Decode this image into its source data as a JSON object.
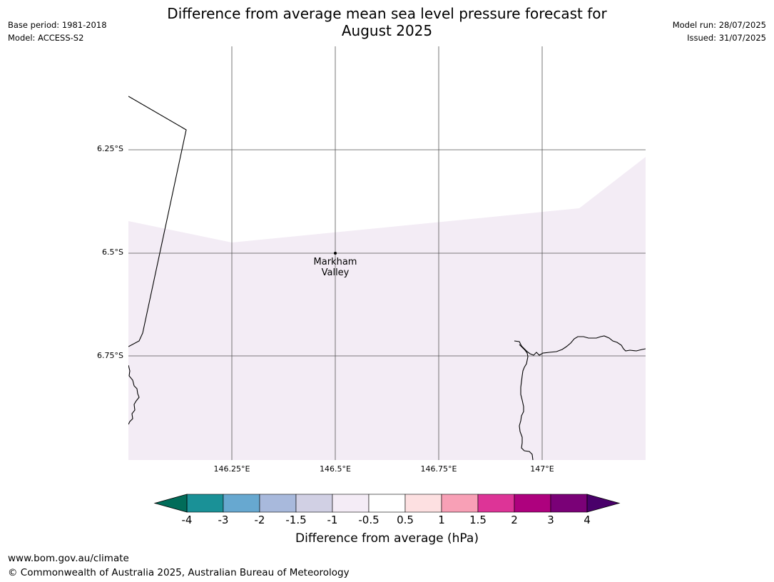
{
  "header": {
    "title_line1": "Difference from average mean sea level pressure forecast for",
    "title_line2": "August 2025",
    "base_period": "Base period: 1981-2018",
    "model": "Model: ACCESS-S2",
    "model_run": "Model run: 28/07/2025",
    "issued": "Issued: 31/07/2025"
  },
  "map": {
    "lat_labels": [
      "6.25°S",
      "6.5°S",
      "6.75°S"
    ],
    "lon_labels": [
      "146.25°E",
      "146.5°E",
      "146.75°E",
      "147°E"
    ],
    "place": {
      "name_line1": "Markham",
      "name_line2": "Valley"
    },
    "fill_color": "#f3ecf5",
    "fill_value_range": [
      -1,
      -0.5
    ]
  },
  "colorbar": {
    "ticks": [
      "-4",
      "-3",
      "-2",
      "-1.5",
      "-1",
      "-0.5",
      "0.5",
      "1",
      "1.5",
      "2",
      "3",
      "4"
    ],
    "colors": [
      "#1a9197",
      "#67a8d0",
      "#a8b9dc",
      "#d1d0e4",
      "#f4ecf6",
      "#ffffff",
      "#fde0e1",
      "#f8a0b6",
      "#dd3497",
      "#ae017e",
      "#7a0177"
    ],
    "under_color": "#016c59",
    "over_color": "#49006a",
    "label": "Difference from average (hPa)"
  },
  "footer": {
    "url": "www.bom.gov.au/climate",
    "copyright": "© Commonwealth of Australia 2025, Australian Bureau of Meteorology"
  }
}
